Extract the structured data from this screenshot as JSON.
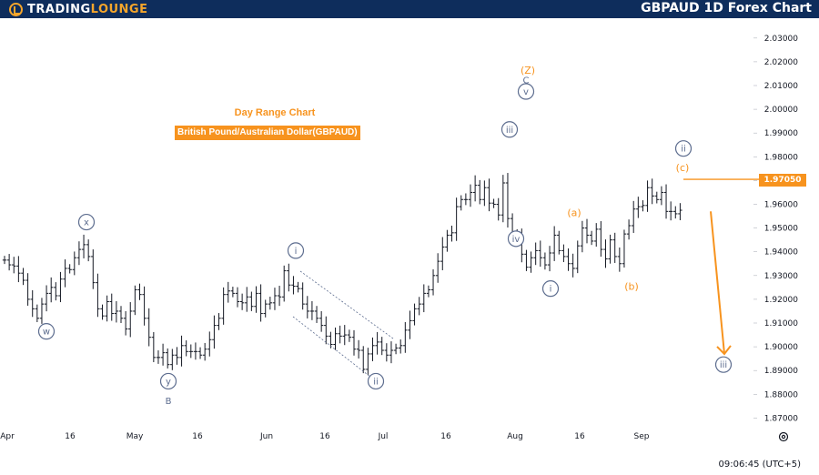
{
  "header": {
    "logo_trading": "TradingLounge",
    "title": "GBPAUD 1D Forex Chart"
  },
  "overlay": {
    "subtitle": "Day Range Chart",
    "pair_badge": "British Pound/Australian Dollar(GBPAUD)"
  },
  "status": {
    "clock": "09:06:45 (UTC+5)"
  },
  "colors": {
    "accent": "#f7931e",
    "wave_blue": "#5d6d8f",
    "header_bg": "#0e2d5c",
    "candle": "#131722"
  },
  "chart_data": {
    "type": "candlestick",
    "symbol": "GBPAUD",
    "timeframe": "1D",
    "y_ticks": [
      "2.03000",
      "2.02000",
      "2.01000",
      "2.00000",
      "1.99000",
      "1.98000",
      "1.97000",
      "1.96000",
      "1.95000",
      "1.94000",
      "1.93000",
      "1.92000",
      "1.91000",
      "1.90000",
      "1.89000",
      "1.88000",
      "1.87000"
    ],
    "ylim": [
      1.865,
      2.035
    ],
    "x_labels": [
      "Apr",
      "16",
      "May",
      "16",
      "Jun",
      "16",
      "Jul",
      "16",
      "Aug",
      "16",
      "Sep"
    ],
    "current_price": "1.97050",
    "price_series": [
      1.9365,
      1.9345,
      1.934,
      1.931,
      1.928,
      1.92,
      1.916,
      1.912,
      1.918,
      1.9225,
      1.925,
      1.9215,
      1.9285,
      1.933,
      1.9325,
      1.9375,
      1.941,
      1.943,
      1.938,
      1.927,
      1.916,
      1.913,
      1.919,
      1.914,
      1.915,
      1.912,
      1.9075,
      1.915,
      1.924,
      1.922,
      1.912,
      1.904,
      1.8955,
      1.8955,
      1.8975,
      1.8925,
      1.8965,
      1.8955,
      1.9005,
      1.898,
      1.898,
      1.898,
      1.8965,
      1.899,
      1.903,
      1.909,
      1.912,
      1.922,
      1.9235,
      1.9225,
      1.919,
      1.9185,
      1.921,
      1.917,
      1.9225,
      1.914,
      1.918,
      1.9185,
      1.9215,
      1.921,
      1.932,
      1.926,
      1.9255,
      1.9245,
      1.918,
      1.915,
      1.915,
      1.912,
      1.909,
      1.9045,
      1.901,
      1.9055,
      1.9045,
      1.905,
      1.904,
      1.899,
      1.8985,
      1.8905,
      1.897,
      1.9005,
      1.902,
      1.8985,
      1.8965,
      1.8985,
      1.8995,
      1.9005,
      1.907,
      1.911,
      1.916,
      1.918,
      1.9225,
      1.924,
      1.93,
      1.936,
      1.942,
      1.947,
      1.948,
      1.959,
      1.962,
      1.962,
      1.965,
      1.968,
      1.962,
      1.967,
      1.9605,
      1.96,
      1.9555,
      1.969,
      1.954,
      1.9465,
      1.946,
      1.939,
      1.9335,
      1.9375,
      1.9405,
      1.9375,
      1.9345,
      1.9395,
      1.947,
      1.9405,
      1.938,
      1.935,
      1.933,
      1.9425,
      1.95,
      1.947,
      1.9445,
      1.9495,
      1.941,
      1.937,
      1.945,
      1.938,
      1.935,
      1.9475,
      1.951,
      1.958,
      1.959,
      1.9595,
      1.967,
      1.9635,
      1.962,
      1.965,
      1.957,
      1.957,
      1.956,
      1.9575
    ],
    "projection": {
      "from": 1.957,
      "to": 1.897
    },
    "wave_labels": [
      {
        "text": "w",
        "style": "circle",
        "color": "blue",
        "price": 1.9065
      },
      {
        "text": "x",
        "style": "circle",
        "color": "blue",
        "price": 1.9525
      },
      {
        "text": "y",
        "style": "circle",
        "color": "blue",
        "price": 1.8855
      },
      {
        "text": "B",
        "style": "plain",
        "color": "blue",
        "price": 1.8775
      },
      {
        "text": "i",
        "style": "circle",
        "color": "blue",
        "price": 1.9405
      },
      {
        "text": "ii",
        "style": "circle",
        "color": "blue",
        "price": 1.8855
      },
      {
        "text": "iii",
        "style": "circle",
        "color": "blue",
        "price": 1.9915
      },
      {
        "text": "iv",
        "style": "circle",
        "color": "blue",
        "price": 1.9455
      },
      {
        "text": "v",
        "style": "circle",
        "color": "blue",
        "price": 2.0075
      },
      {
        "text": "C",
        "style": "plain",
        "color": "blue",
        "price": 2.0125
      },
      {
        "text": "(Z)",
        "style": "plain",
        "color": "orange",
        "price": 2.0165
      },
      {
        "text": "i",
        "style": "circle",
        "color": "blue",
        "price": 1.9245
      },
      {
        "text": "(a)",
        "style": "plain",
        "color": "orange",
        "price": 1.9565
      },
      {
        "text": "(b)",
        "style": "plain",
        "color": "orange",
        "price": 1.9255
      },
      {
        "text": "(c)",
        "style": "plain",
        "color": "orange",
        "price": 1.9755
      },
      {
        "text": "ii",
        "style": "circle",
        "color": "blue",
        "price": 1.9835
      },
      {
        "text": "iii",
        "style": "circle",
        "color": "blue",
        "price": 1.8925
      }
    ]
  }
}
